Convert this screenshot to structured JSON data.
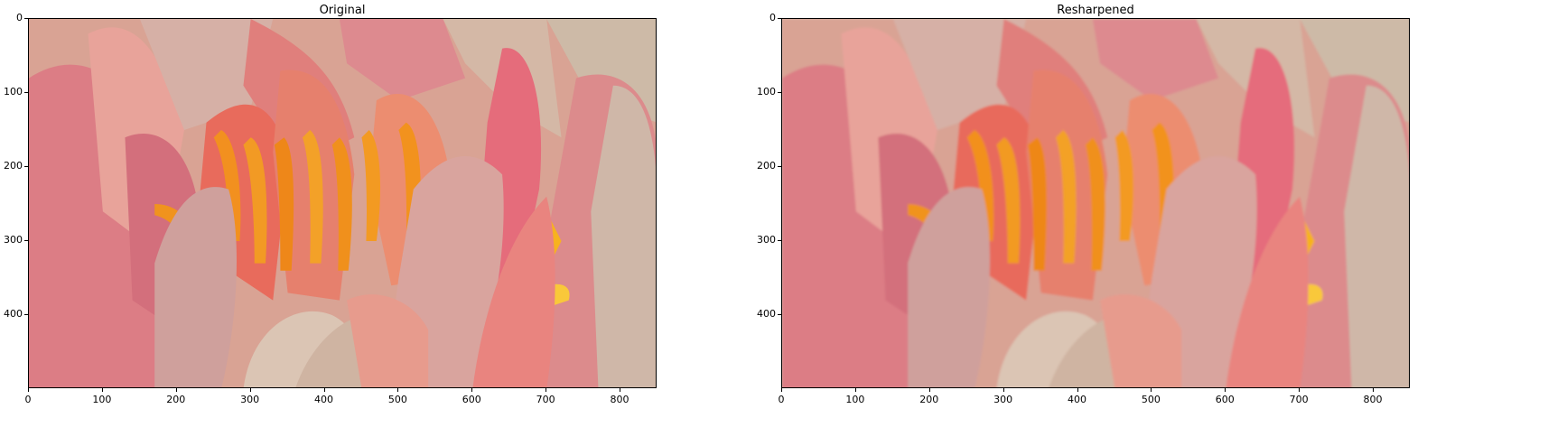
{
  "figure": {
    "panels": [
      {
        "id": "left",
        "title": "Original",
        "xticks": [
          "0",
          "100",
          "200",
          "300",
          "400",
          "500",
          "600",
          "700",
          "800"
        ],
        "yticks": [
          "0",
          "100",
          "200",
          "300",
          "400"
        ],
        "blur": 0
      },
      {
        "id": "right",
        "title": "Resharpened",
        "xticks": [
          "0",
          "100",
          "200",
          "300",
          "400",
          "500",
          "600",
          "700",
          "800"
        ],
        "yticks": [
          "0",
          "100",
          "200",
          "300",
          "400"
        ],
        "blur": 1.6
      }
    ]
  },
  "colors": {
    "petal_pink": "#e2848a",
    "petal_cream": "#d8c3b1",
    "stamen_orange": "#f08a1e",
    "background": "#ffffff"
  }
}
